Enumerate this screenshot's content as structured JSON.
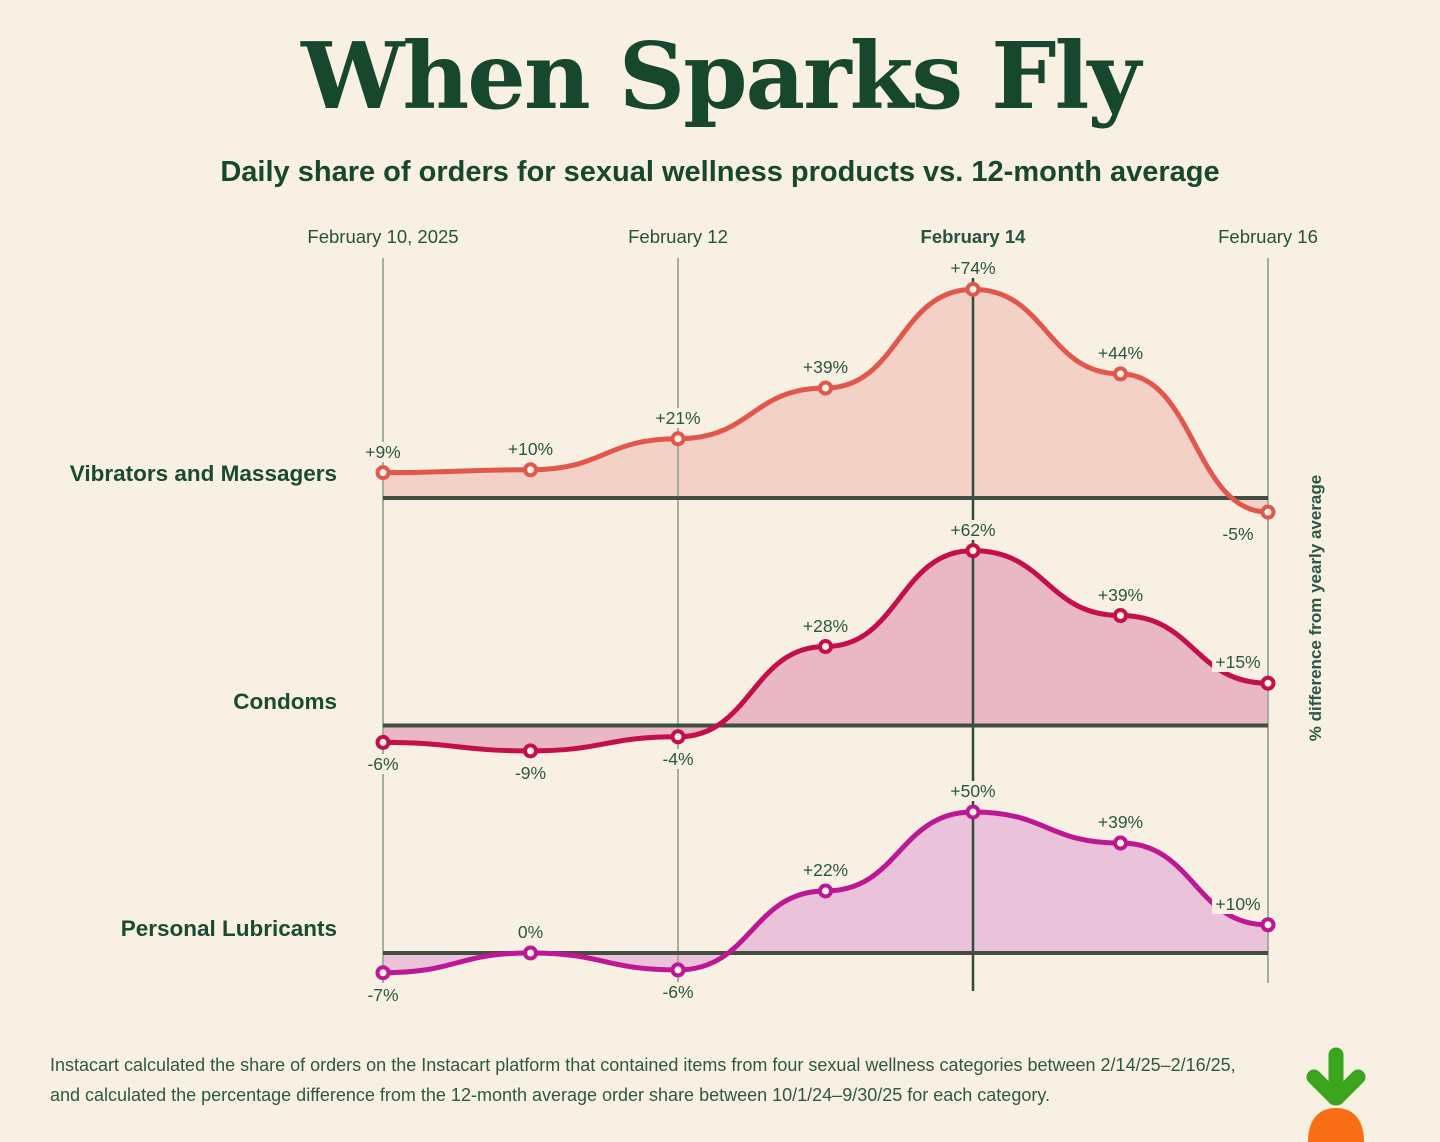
{
  "header": {
    "title": "When Sparks Fly",
    "subtitle": "Daily share of orders for sexual wellness products vs. 12-month average"
  },
  "chart_data": {
    "type": "area",
    "x_ticks": [
      {
        "label": "February 10, 2025",
        "bold": false
      },
      {
        "label": "February 12",
        "bold": false
      },
      {
        "label": "February 14",
        "bold": true
      },
      {
        "label": "February 16",
        "bold": false
      }
    ],
    "right_axis_label": "% difference from yearly average",
    "unit": "%",
    "baseline_value": 0,
    "series": [
      {
        "name": "Vibrators and Massagers",
        "values": [
          9,
          10,
          21,
          39,
          74,
          44,
          -5
        ],
        "point_labels": [
          "+9%",
          "+10%",
          "+21%",
          "+39%",
          "+74%",
          "+44%",
          "-5%"
        ],
        "line_color": "#E2574B",
        "fill_color": "#F4D1C6"
      },
      {
        "name": "Condoms",
        "values": [
          -6,
          -9,
          -4,
          28,
          62,
          39,
          15
        ],
        "point_labels": [
          "-6%",
          "-9%",
          "-4%",
          "+28%",
          "+62%",
          "+39%",
          "+15%"
        ],
        "line_color": "#C50F4B",
        "fill_color": "#E9B8C4"
      },
      {
        "name": "Personal Lubricants",
        "values": [
          -7,
          0,
          -6,
          22,
          50,
          39,
          10
        ],
        "point_labels": [
          "-7%",
          "0%",
          "-6%",
          "+22%",
          "+50%",
          "+39%",
          "+10%"
        ],
        "line_color": "#BE1794",
        "fill_color": "#EAC3DB"
      }
    ]
  },
  "footer": {
    "note": "Instacart calculated the share of orders on the Instacart platform that contained items from four sexual wellness categories between 2/14/25–2/16/25, and calculated the percentage difference from the 12-month average order share between 10/1/24–9/30/25 for each category.",
    "logo": "instacart-carrot-logo"
  },
  "colors": {
    "background": "#F8F0E3",
    "heading": "#17482E",
    "text": "#2B5843",
    "grid_light": "#A1B09B",
    "grid_dark": "#2E4E3A",
    "baseline": "#424E42",
    "marker_fill": "#FBF4E6",
    "logo_green": "#3BA51E",
    "logo_orange": "#F96E15"
  }
}
